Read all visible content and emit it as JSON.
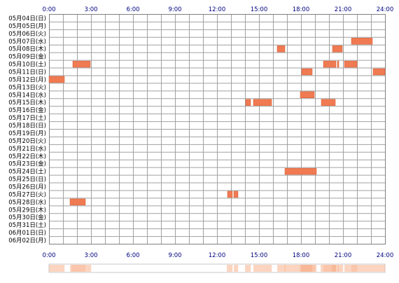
{
  "chart_data": {
    "type": "timeline",
    "x_ticks": [
      "0:00",
      "3:00",
      "6:00",
      "9:00",
      "12:00",
      "15:00",
      "18:00",
      "21:00",
      "24:00"
    ],
    "x_range_hours": [
      0,
      24
    ],
    "grid": true,
    "rows": [
      "05月04日(日)",
      "05月05日(月)",
      "05月06日(火)",
      "05月07日(水)",
      "05月08日(木)",
      "05月09日(金)",
      "05月10日(土)",
      "05月11日(日)",
      "05月12日(月)",
      "05月13日(火)",
      "05月14日(水)",
      "05月15日(木)",
      "05月16日(金)",
      "05月17日(土)",
      "05月18日(日)",
      "05月19日(月)",
      "05月20日(火)",
      "05月21日(水)",
      "05月22日(木)",
      "05月23日(金)",
      "05月24日(土)",
      "05月25日(日)",
      "05月26日(月)",
      "05月27日(火)",
      "05月28日(水)",
      "05月29日(木)",
      "05月30日(金)",
      "05月31日(土)",
      "06月01日(日)",
      "06月02日(月)"
    ],
    "events": [
      {
        "day": "05月07日(水)",
        "start": 21.6,
        "end": 23.1
      },
      {
        "day": "05月08日(木)",
        "start": 16.3,
        "end": 16.85
      },
      {
        "day": "05月08日(木)",
        "start": 20.25,
        "end": 20.95
      },
      {
        "day": "05月10日(土)",
        "start": 1.7,
        "end": 2.95
      },
      {
        "day": "05月10日(土)",
        "start": 19.6,
        "end": 20.5
      },
      {
        "day": "05月10日(土)",
        "start": 20.6,
        "end": 20.7
      },
      {
        "day": "05月10日(土)",
        "start": 21.1,
        "end": 22.0
      },
      {
        "day": "05月11日(日)",
        "start": 18.05,
        "end": 18.8
      },
      {
        "day": "05月11日(日)",
        "start": 23.15,
        "end": 24.0
      },
      {
        "day": "05月12日(月)",
        "start": 0.0,
        "end": 1.1
      },
      {
        "day": "05月14日(水)",
        "start": 17.95,
        "end": 18.95
      },
      {
        "day": "05月15日(木)",
        "start": 14.05,
        "end": 14.4
      },
      {
        "day": "05月15日(木)",
        "start": 14.6,
        "end": 15.9
      },
      {
        "day": "05月15日(木)",
        "start": 19.45,
        "end": 20.45
      },
      {
        "day": "05月24日(土)",
        "start": 16.85,
        "end": 19.1
      },
      {
        "day": "05月27日(火)",
        "start": 12.75,
        "end": 13.1
      },
      {
        "day": "05月27日(火)",
        "start": 13.2,
        "end": 13.5
      },
      {
        "day": "05月28日(水)",
        "start": 1.5,
        "end": 2.6
      }
    ],
    "colors": {
      "background": "#ffffff",
      "grid": "#a0a0a0",
      "border": "#808080",
      "event_fill": "#f07a52",
      "event_stroke": "#d85a30",
      "tick_label": "#000080",
      "row_label": "#000000",
      "density_low": "#fde8dc",
      "density_high": "#f8b897"
    }
  }
}
